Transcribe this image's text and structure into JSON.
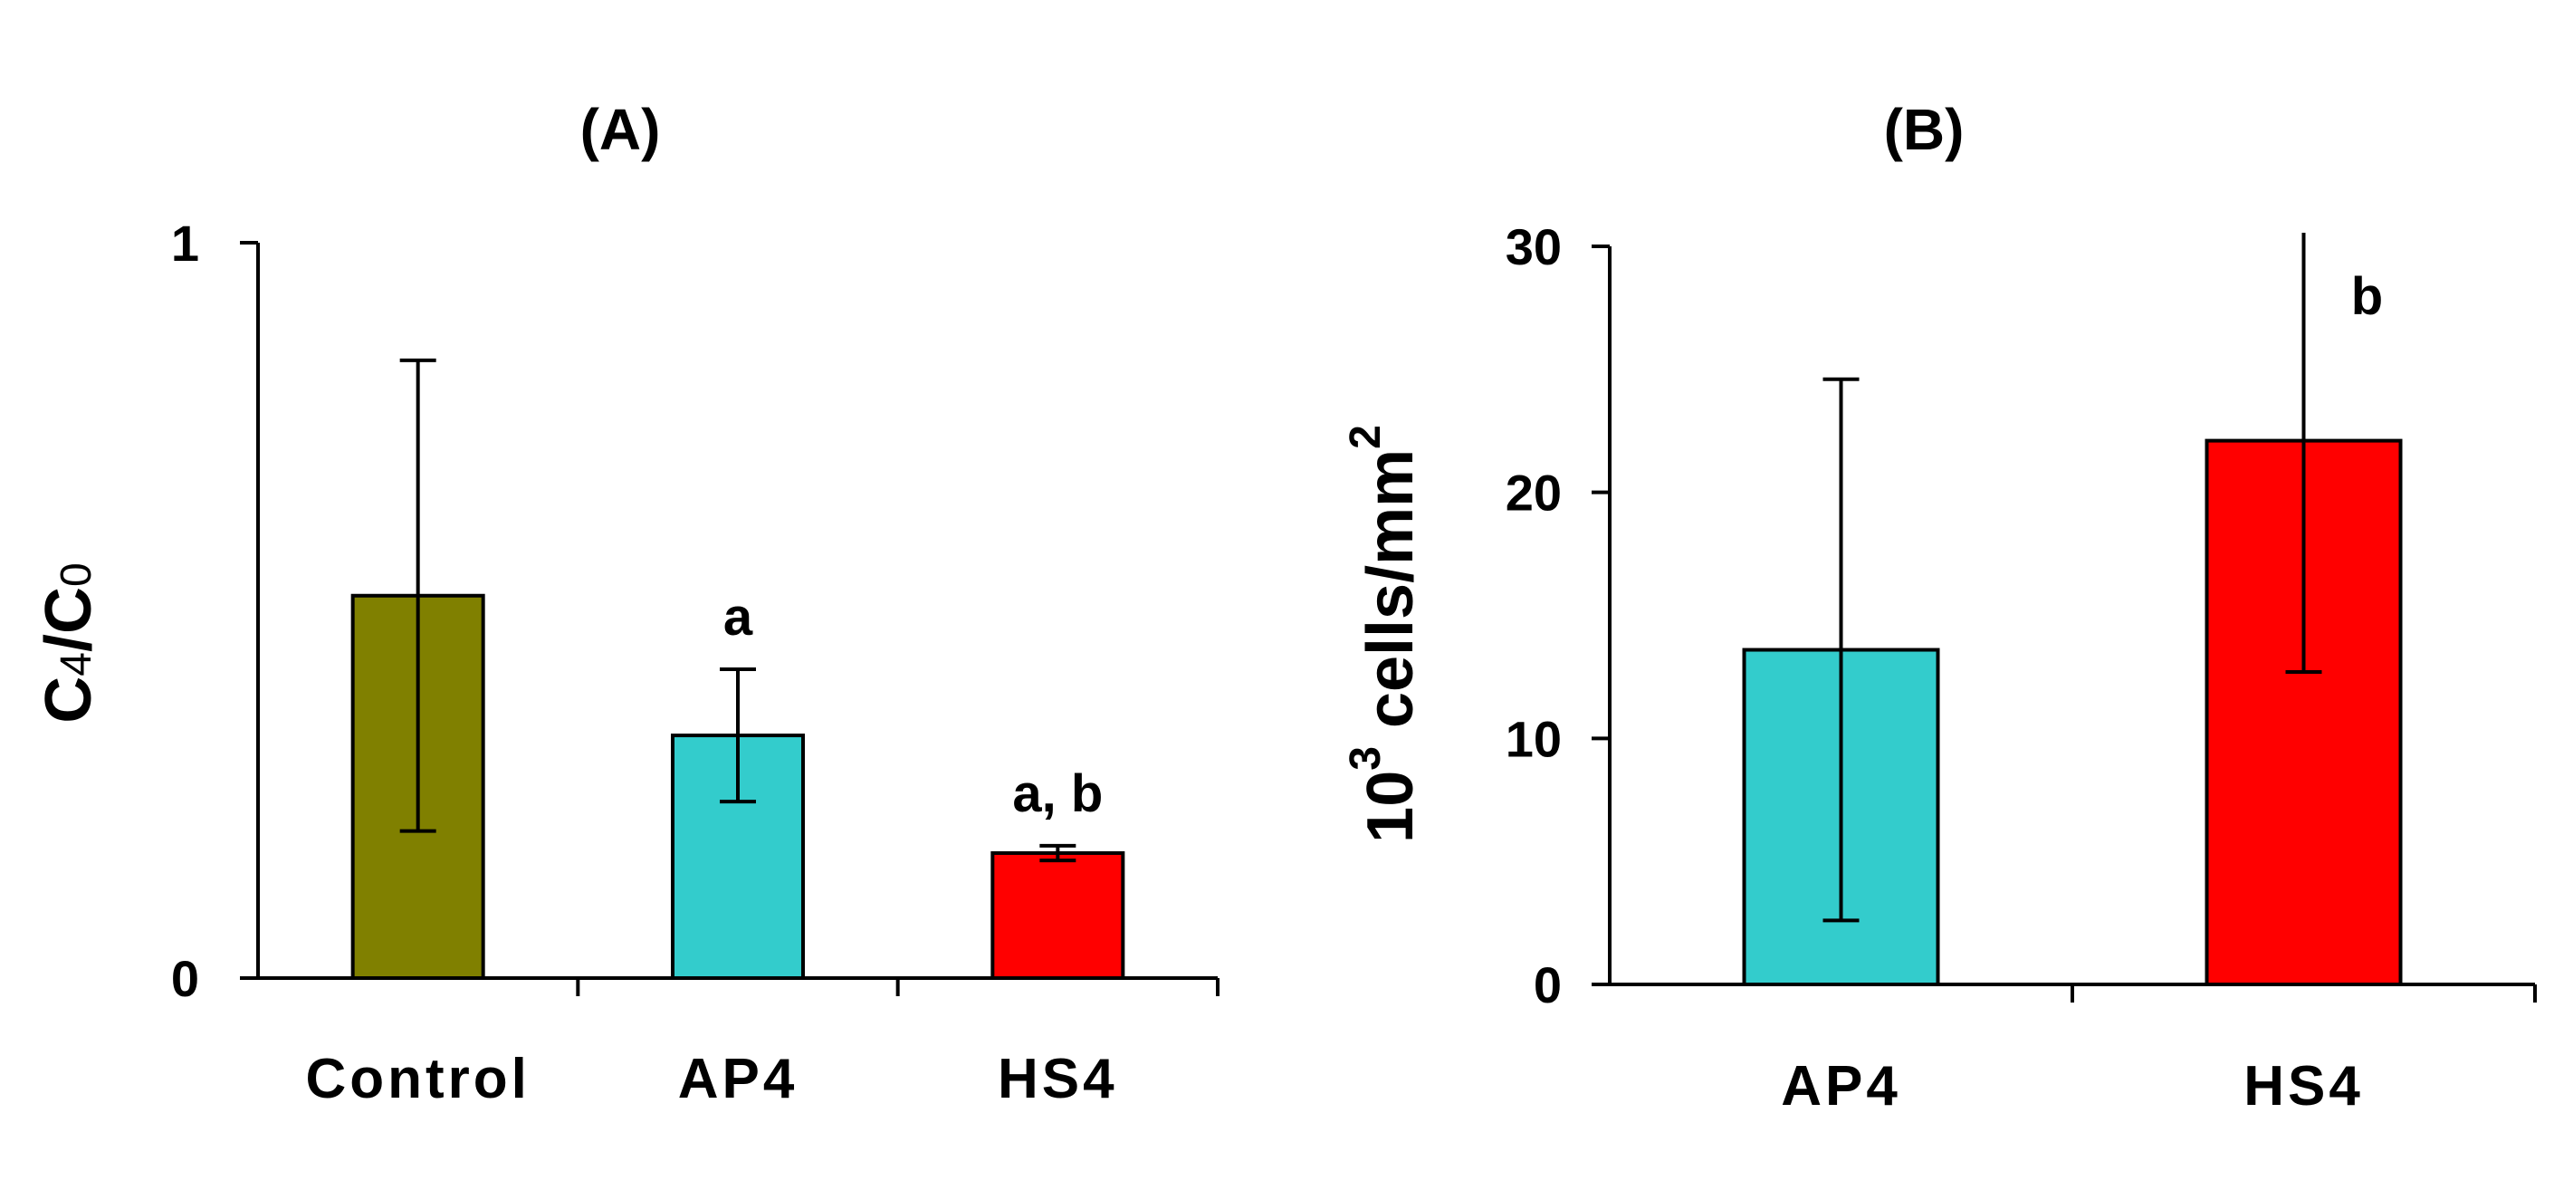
{
  "chart_data": [
    {
      "type": "bar",
      "title": "(A)",
      "ylabel": {
        "main": "C",
        "sub1": "4",
        "sep": "/C",
        "sub2": "0"
      },
      "ylim": [
        0,
        1
      ],
      "yticks": [
        "0",
        "1"
      ],
      "categories": [
        "Control",
        "AP4",
        "HS4"
      ],
      "values": [
        0.52,
        0.33,
        0.17
      ],
      "errors": [
        0.32,
        0.09,
        0.01
      ],
      "colors": [
        "#808000",
        "#33CCCC",
        "#FF0000"
      ],
      "annotations": [
        "",
        "a",
        "a, b"
      ]
    },
    {
      "type": "bar",
      "title": "(B)",
      "ylabel": {
        "base": "10",
        "exp1": "3",
        "unit": " cells/mm",
        "exp2": "2"
      },
      "ylim": [
        0,
        30
      ],
      "yticks": [
        "0",
        "10",
        "20",
        "30"
      ],
      "categories": [
        "AP4",
        "HS4"
      ],
      "values": [
        13.6,
        22.1
      ],
      "errors": [
        11.0,
        9.4
      ],
      "colors": [
        "#33CCCC",
        "#FF0000"
      ],
      "annotations": [
        "",
        "b"
      ]
    }
  ]
}
